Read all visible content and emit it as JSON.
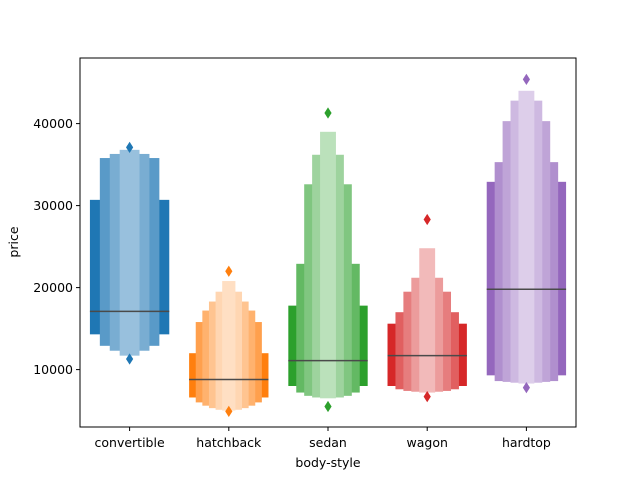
{
  "chart_data": {
    "type": "boxen",
    "title": "",
    "xlabel": "body-style",
    "ylabel": "price",
    "ylim": [
      3000,
      48000
    ],
    "yticks": [
      10000,
      20000,
      30000,
      40000
    ],
    "ytick_labels": [
      "10000",
      "20000",
      "30000",
      "40000"
    ],
    "grid": false,
    "legend": "none",
    "categories": [
      "convertible",
      "hatchback",
      "sedan",
      "wagon",
      "hardtop"
    ],
    "series": [
      {
        "category": "convertible",
        "color": "#1f77b4",
        "median": 17100,
        "boxes": [
          [
            14300,
            30700
          ],
          [
            12900,
            35800
          ],
          [
            12300,
            36300
          ],
          [
            11700,
            36800
          ]
        ],
        "outliers": [
          11300,
          37100
        ]
      },
      {
        "category": "hatchback",
        "color": "#ff7f0e",
        "median": 8800,
        "boxes": [
          [
            6600,
            12000
          ],
          [
            6000,
            15800
          ],
          [
            5600,
            17200
          ],
          [
            5300,
            18300
          ],
          [
            5100,
            19500
          ],
          [
            5000,
            20800
          ]
        ],
        "outliers": [
          4900,
          22000
        ]
      },
      {
        "category": "sedan",
        "color": "#2ca02c",
        "median": 11100,
        "boxes": [
          [
            8000,
            17800
          ],
          [
            7200,
            22900
          ],
          [
            6800,
            32600
          ],
          [
            6600,
            36200
          ],
          [
            6500,
            39000
          ]
        ],
        "outliers": [
          5500,
          41300
        ]
      },
      {
        "category": "wagon",
        "color": "#d62728",
        "median": 11700,
        "boxes": [
          [
            8000,
            15600
          ],
          [
            7600,
            17000
          ],
          [
            7400,
            19500
          ],
          [
            7300,
            21200
          ],
          [
            7200,
            24800
          ]
        ],
        "outliers": [
          6700,
          28300
        ]
      },
      {
        "category": "hardtop",
        "color": "#9467bd",
        "median": 19800,
        "boxes": [
          [
            9300,
            32900
          ],
          [
            8600,
            35300
          ],
          [
            8500,
            40300
          ],
          [
            8400,
            42800
          ],
          [
            8300,
            44000
          ]
        ],
        "outliers": [
          7800,
          45400
        ]
      }
    ]
  }
}
